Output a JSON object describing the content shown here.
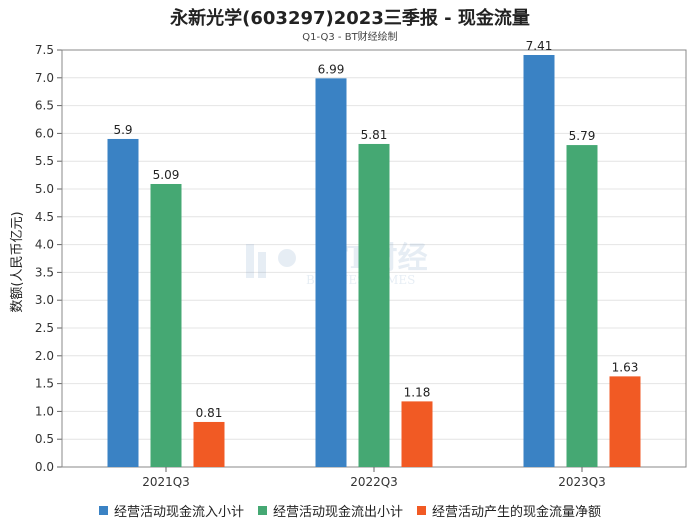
{
  "chart_data": {
    "type": "bar",
    "title": "永新光学(603297)2023三季报 - 现金流量",
    "subtitle": "Q1-Q3 - BT财经绘制",
    "ylabel": "数额(人民币亿元)",
    "xlabel": "",
    "ylim": [
      0,
      7.5
    ],
    "yticks": [
      "0.0",
      "0.5",
      "1.0",
      "1.5",
      "2.0",
      "2.5",
      "3.0",
      "3.5",
      "4.0",
      "4.5",
      "5.0",
      "5.5",
      "6.0",
      "6.5",
      "7.0",
      "7.5"
    ],
    "categories": [
      "2021Q3",
      "2022Q3",
      "2023Q3"
    ],
    "series": [
      {
        "name": "经营活动现金流入小计",
        "color": "#3a82c4",
        "values": [
          5.9,
          6.99,
          7.41
        ]
      },
      {
        "name": "经营活动现金流出小计",
        "color": "#45a873",
        "values": [
          5.09,
          5.81,
          5.79
        ]
      },
      {
        "name": "经营活动产生的现金流量净额",
        "color": "#f15a24",
        "values": [
          0.81,
          1.18,
          1.63
        ]
      }
    ],
    "data_labels": true,
    "grid": true,
    "legend_position": "bottom",
    "watermark": "BT财经 BUSINESSTIMES"
  }
}
